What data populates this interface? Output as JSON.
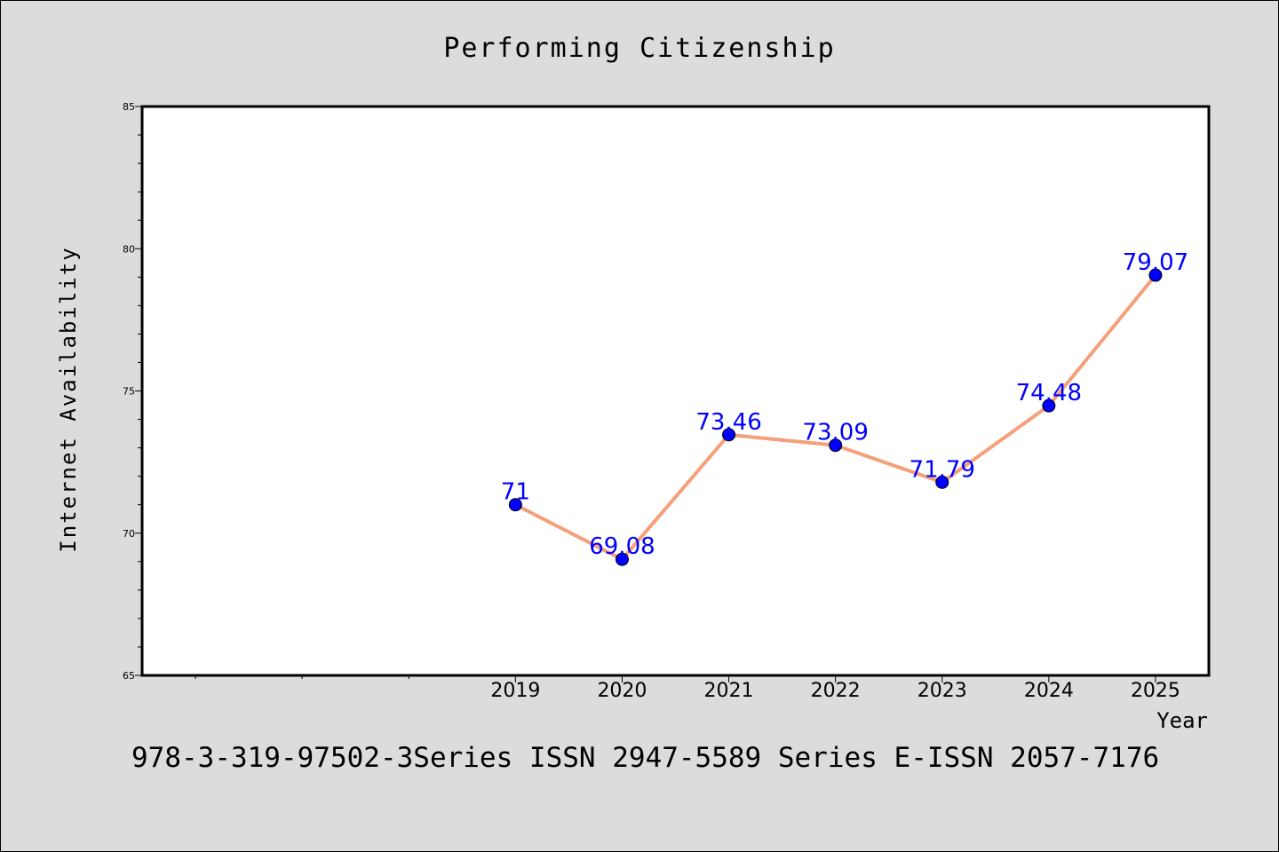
{
  "chart_data": {
    "type": "line",
    "title": "Performing Citizenship",
    "xlabel": "Year",
    "ylabel": "Internet Availability",
    "categories": [
      "2019",
      "2020",
      "2021",
      "2022",
      "2023",
      "2024",
      "2025"
    ],
    "series": [
      {
        "values": [
          71,
          69.08,
          73.46,
          73.09,
          71.79,
          74.48,
          79.07
        ],
        "data_labels": [
          "71",
          "69.08",
          "73.46",
          "73.09",
          "71.79",
          "74.48",
          "79.07"
        ],
        "line_color": "#f4a07a",
        "marker_color": "#0000ff"
      }
    ],
    "ylim": [
      65,
      85
    ],
    "yticks": [
      65,
      70,
      75,
      80,
      85
    ],
    "ytick_labels": [
      "65",
      "70",
      "75",
      "80",
      "85"
    ],
    "grid": false,
    "legend": "none"
  },
  "footer": {
    "text": "978-3-319-97502-3Series ISSN 2947-5589 Series E-ISSN 2057-7176"
  },
  "colors": {
    "background": "#dcdcdc",
    "plot_background": "#ffffff",
    "line": "#f4a07a",
    "marker": "#0000ff",
    "data_label": "#0000ff"
  }
}
